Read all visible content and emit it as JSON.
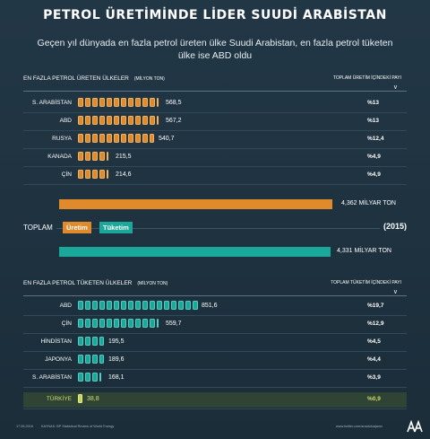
{
  "title": "PETROL ÜRETİMİNDE LİDER SUUDİ ARABİSTAN",
  "subtitle": "Geçen yıl dünyada en fazla petrol üreten ülke Suudi Arabistan, en fazla petrol tüketen ülke ise ABD oldu",
  "production": {
    "heading": "EN FAZLA PETROL ÜRETEN ÜLKELER",
    "unit": "(MİLYON TON)",
    "share_heading": "TOPLAM ÜRETİM İÇİNDEKİ PAYI",
    "rows": [
      {
        "country": "S. ARABİSTAN",
        "value": "568,5",
        "share": "%13"
      },
      {
        "country": "ABD",
        "value": "567,2",
        "share": "%13"
      },
      {
        "country": "RUSYA",
        "value": "540,7",
        "share": "%12,4"
      },
      {
        "country": "KANADA",
        "value": "215,5",
        "share": "%4,9"
      },
      {
        "country": "ÇİN",
        "value": "214,6",
        "share": "%4,9"
      }
    ],
    "total": "4,362 MİLYAR TON"
  },
  "legend": {
    "total_label": "TOPLAM",
    "production_label": "Üretim",
    "consumption_label": "Tüketim",
    "year": "(2015)"
  },
  "consumption": {
    "heading": "EN FAZLA PETROL TÜKETEN ÜLKELER",
    "unit": "(MİLYON TON)",
    "share_heading": "TOPLAM TÜKETİM İÇİNDEKİ PAYI",
    "total": "4,331 MİLYAR TON",
    "rows": [
      {
        "country": "ABD",
        "value": "851,6",
        "share": "%19,7"
      },
      {
        "country": "ÇİN",
        "value": "559,7",
        "share": "%12,9"
      },
      {
        "country": "HİNDİSTAN",
        "value": "195,5",
        "share": "%4,5"
      },
      {
        "country": "JAPONYA",
        "value": "189,6",
        "share": "%4,4"
      },
      {
        "country": "S. ARABİSTAN",
        "value": "168,1",
        "share": "%3,9"
      }
    ],
    "turkey": {
      "country": "TÜRKİYE",
      "value": "38,8",
      "share": "%0,9"
    }
  },
  "footer": {
    "date": "17.06.2016",
    "source": "KAYNAK: BP Statistical Review of World Energy",
    "web": "www.twitter.com/anadoluajansi"
  },
  "colors": {
    "background": "#1c2f3c",
    "production": "#e08a2c",
    "consumption": "#1aa89a",
    "turkey": "#c6d35a"
  },
  "chart_data": [
    {
      "type": "bar",
      "title": "EN FAZLA PETROL ÜRETEN ÜLKELER",
      "ylabel": "(MİLYON TON)",
      "categories": [
        "S. ARABİSTAN",
        "ABD",
        "RUSYA",
        "KANADA",
        "ÇİN"
      ],
      "values": [
        568.5,
        567.2,
        540.7,
        215.5,
        214.6
      ],
      "shares_percent": [
        13,
        13,
        12.4,
        4.9,
        4.9
      ],
      "total_milyar_ton": 4.362,
      "barrel_unit": 50
    },
    {
      "type": "bar",
      "title": "EN FAZLA PETROL TÜKETEN ÜLKELER",
      "ylabel": "(MİLYON TON)",
      "categories": [
        "ABD",
        "ÇİN",
        "HİNDİSTAN",
        "JAPONYA",
        "S. ARABİSTAN",
        "TÜRKİYE"
      ],
      "values": [
        851.6,
        559.7,
        195.5,
        189.6,
        168.1,
        38.8
      ],
      "shares_percent": [
        19.7,
        12.9,
        4.5,
        4.4,
        3.9,
        0.9
      ],
      "total_milyar_ton": 4.331,
      "barrel_unit": 50
    }
  ]
}
